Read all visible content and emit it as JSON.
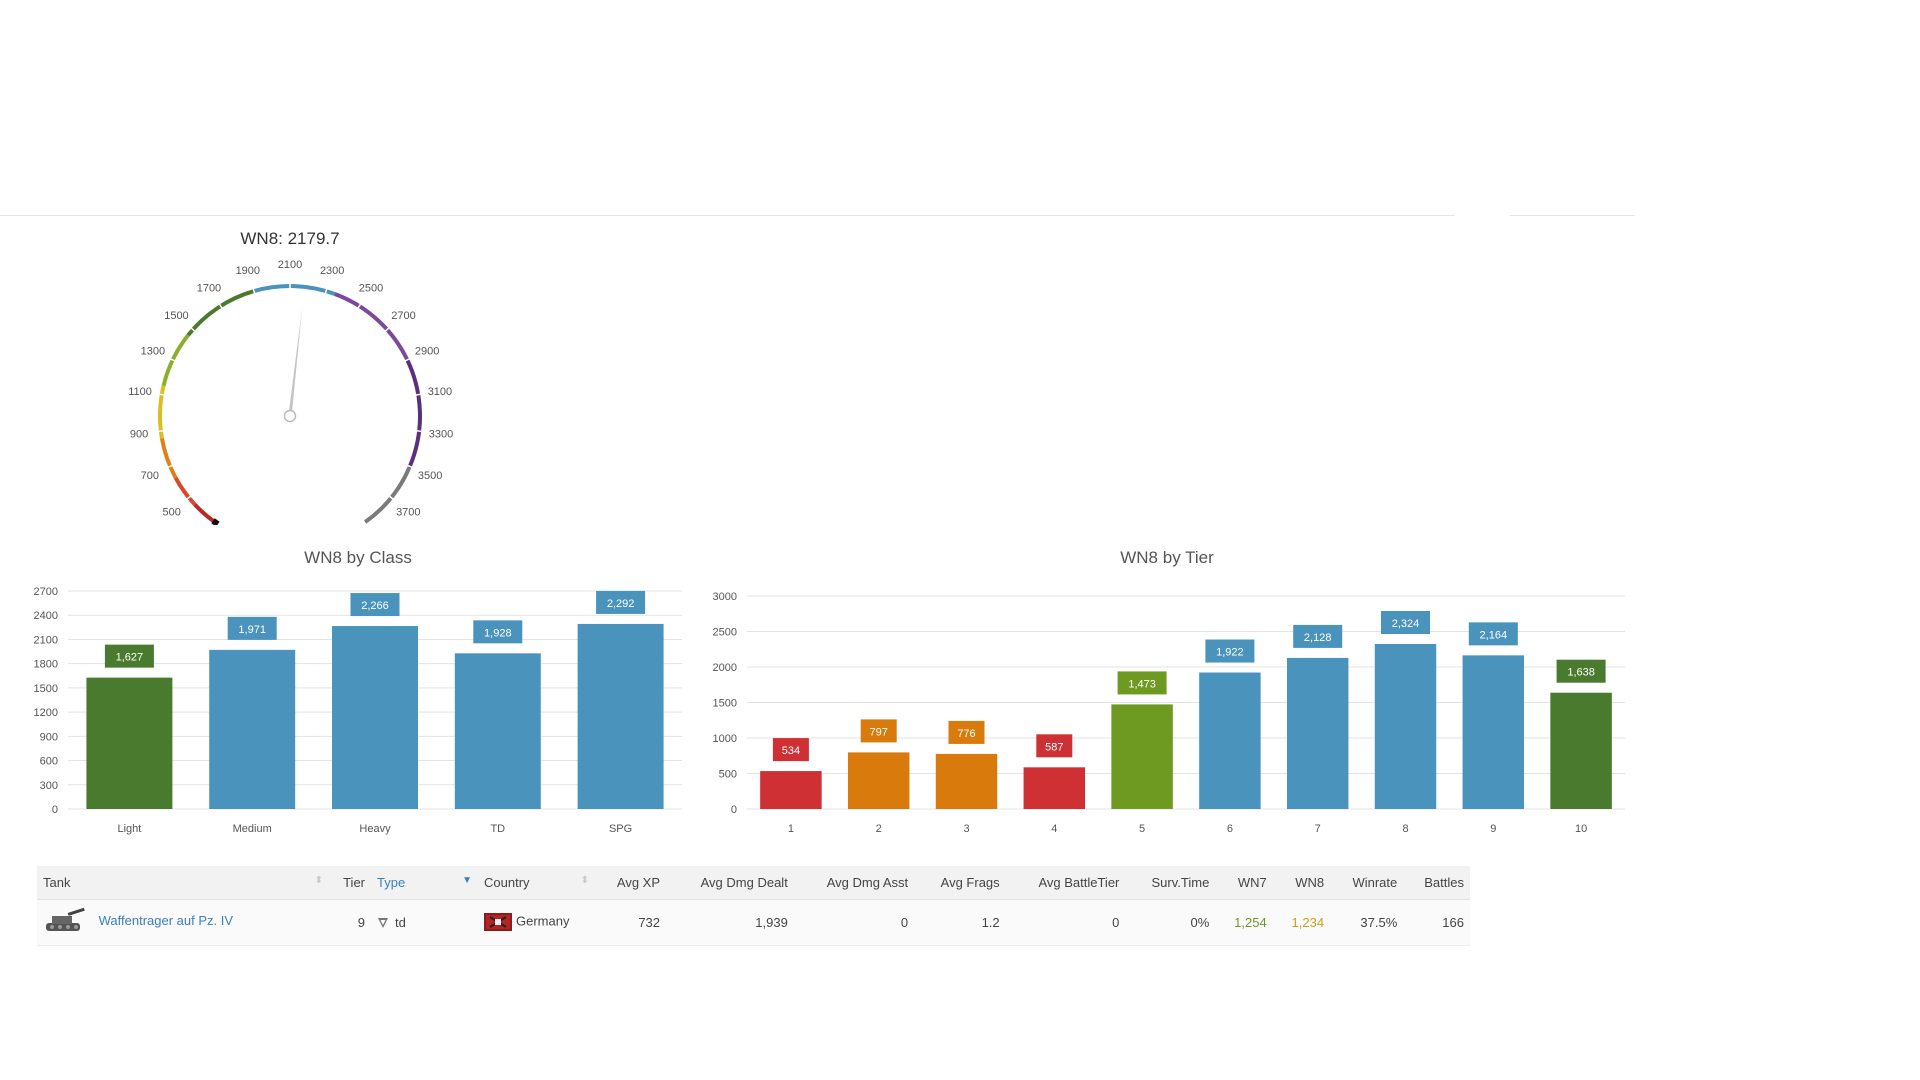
{
  "gauge": {
    "title": "WN8: 2179.7",
    "value": 2179.7,
    "min": 300,
    "max": 3900,
    "ticks": [
      300,
      500,
      700,
      900,
      1100,
      1300,
      1500,
      1700,
      1900,
      2100,
      2300,
      2500,
      2700,
      2900,
      3100,
      3300,
      3500,
      3700,
      3900
    ],
    "bands": [
      {
        "from": 300,
        "to": 450,
        "color": "#b42b2b"
      },
      {
        "from": 450,
        "to": 630,
        "color": "#d44a2a"
      },
      {
        "from": 630,
        "to": 860,
        "color": "#e07f1b"
      },
      {
        "from": 860,
        "to": 1150,
        "color": "#d9bf22"
      },
      {
        "from": 1150,
        "to": 1460,
        "color": "#8ab02b"
      },
      {
        "from": 1460,
        "to": 1900,
        "color": "#4a7a2a"
      },
      {
        "from": 1900,
        "to": 2350,
        "color": "#4a93bc"
      },
      {
        "from": 2350,
        "to": 2900,
        "color": "#7b4a9a"
      },
      {
        "from": 2900,
        "to": 3500,
        "color": "#5b2f7c"
      },
      {
        "from": 3500,
        "to": 3900,
        "color": "#7a7a7a"
      }
    ]
  },
  "chart_data": [
    {
      "type": "bar",
      "title": "WN8 by Class",
      "categories": [
        "Light",
        "Medium",
        "Heavy",
        "TD",
        "SPG"
      ],
      "values": [
        1627,
        1971,
        2266,
        1928,
        2292
      ],
      "labels": [
        "1,627",
        "1,971",
        "2,266",
        "1,928",
        "2,292"
      ],
      "colors": [
        "#4a7a2e",
        "#4a93bc",
        "#4a93bc",
        "#4a93bc",
        "#4a93bc"
      ],
      "yticks": [
        0,
        300,
        600,
        900,
        1200,
        1500,
        1800,
        2100,
        2400,
        2700
      ],
      "ylim": [
        0,
        2700
      ],
      "grid": true
    },
    {
      "type": "bar",
      "title": "WN8 by Tier",
      "categories": [
        "1",
        "2",
        "3",
        "4",
        "5",
        "6",
        "7",
        "8",
        "9",
        "10"
      ],
      "values": [
        534,
        797,
        776,
        587,
        1473,
        1922,
        2128,
        2324,
        2164,
        1638
      ],
      "labels": [
        "534",
        "797",
        "776",
        "587",
        "1,473",
        "1,922",
        "2,128",
        "2,324",
        "2,164",
        "1,638"
      ],
      "colors": [
        "#cf3034",
        "#d97a0c",
        "#d97a0c",
        "#cf3034",
        "#6e9a22",
        "#4a93bc",
        "#4a93bc",
        "#4a93bc",
        "#4a93bc",
        "#4a7a2e"
      ],
      "yticks": [
        0,
        500,
        1000,
        1500,
        2000,
        2500,
        3000
      ],
      "ylim": [
        0,
        3000
      ],
      "grid": true
    }
  ],
  "table": {
    "headers": [
      "Tank",
      "Tier",
      "Type",
      "Country",
      "Avg XP",
      "Avg Dmg Dealt",
      "Avg Dmg Asst",
      "Avg Frags",
      "Avg BattleTier",
      "Surv.Time",
      "WN7",
      "WN8",
      "Winrate",
      "Battles"
    ],
    "row": {
      "tank": "Waffentrager auf Pz. IV",
      "tier": "9",
      "type": "td",
      "country": "Germany",
      "avg_xp": "732",
      "avg_dmg_dealt": "1,939",
      "avg_dmg_asst": "0",
      "avg_frags": "1.2",
      "avg_battletier": "0",
      "surv_time": "0%",
      "wn7": "1,254",
      "wn8": "1,234",
      "winrate": "37.5%",
      "battles": "166"
    }
  }
}
